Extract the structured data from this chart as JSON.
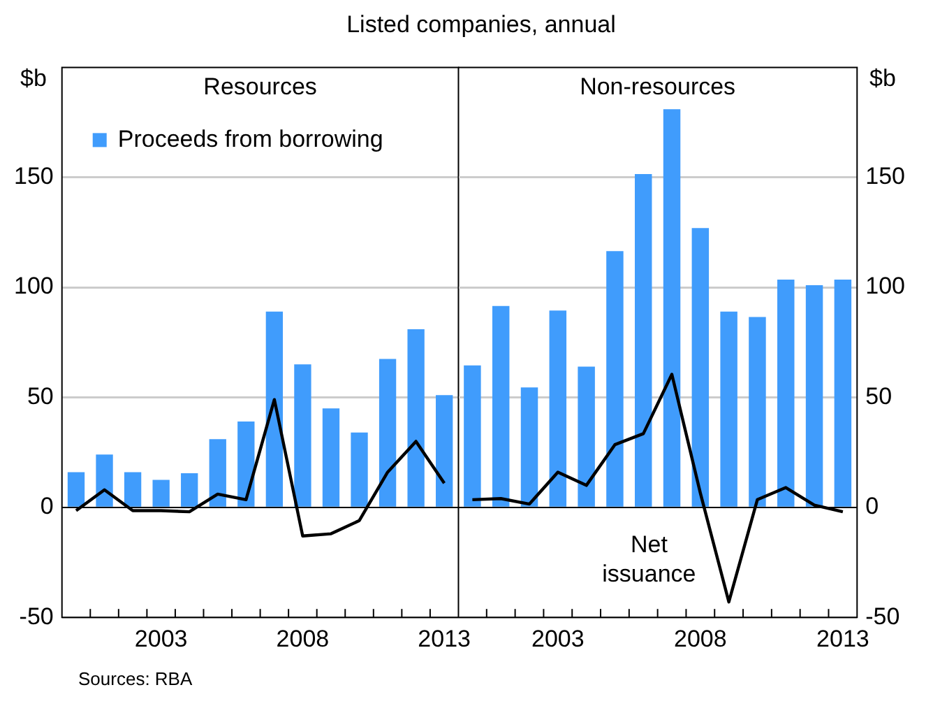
{
  "chart_data": [
    {
      "type": "bar",
      "title": "Resources",
      "subtitle": "Listed companies, annual",
      "ylabel": "$b",
      "categories": [
        null,
        null,
        null,
        "2003",
        null,
        null,
        null,
        null,
        "2008",
        null,
        null,
        null,
        null,
        "2013"
      ],
      "ylim": [
        -50,
        200
      ],
      "yticks": [
        -50,
        0,
        50,
        100,
        150
      ],
      "grid": "y",
      "legend": "top left",
      "series": [
        {
          "name": "Proceeds from borrowing",
          "color": "#409cfc",
          "values": [
            16,
            24,
            16,
            12.5,
            15.5,
            31,
            39,
            89,
            65,
            45,
            34,
            67.5,
            81,
            51
          ]
        },
        {
          "type": "line",
          "color": "#000000",
          "values": [
            -1.5,
            8,
            -1.5,
            -1.5,
            -2,
            6,
            3.5,
            49,
            -13,
            -12,
            -6,
            16,
            30,
            11
          ]
        }
      ]
    },
    {
      "type": "bar",
      "title": "Non-resources",
      "ylabel": "$b",
      "categories": [
        null,
        null,
        null,
        "2003",
        null,
        null,
        null,
        null,
        "2008",
        null,
        null,
        null,
        null,
        "2013"
      ],
      "ylim": [
        -50,
        200
      ],
      "yticks": [
        -50,
        0,
        50,
        100,
        150
      ],
      "grid": "y",
      "annotations": [
        "Sources: RBA"
      ],
      "series": [
        {
          "color": "#409cfc",
          "values": [
            64.5,
            91.5,
            54.5,
            89.5,
            64,
            116.5,
            151.5,
            181,
            127,
            89,
            86.5,
            103.5,
            101,
            103.5
          ]
        },
        {
          "name": "Net issuance",
          "type": "line",
          "color": "#000000",
          "values": [
            3.5,
            4,
            1.5,
            16,
            10,
            28.5,
            33.5,
            60.5,
            6.5,
            -43,
            3.5,
            9,
            1,
            -2
          ]
        }
      ]
    }
  ]
}
